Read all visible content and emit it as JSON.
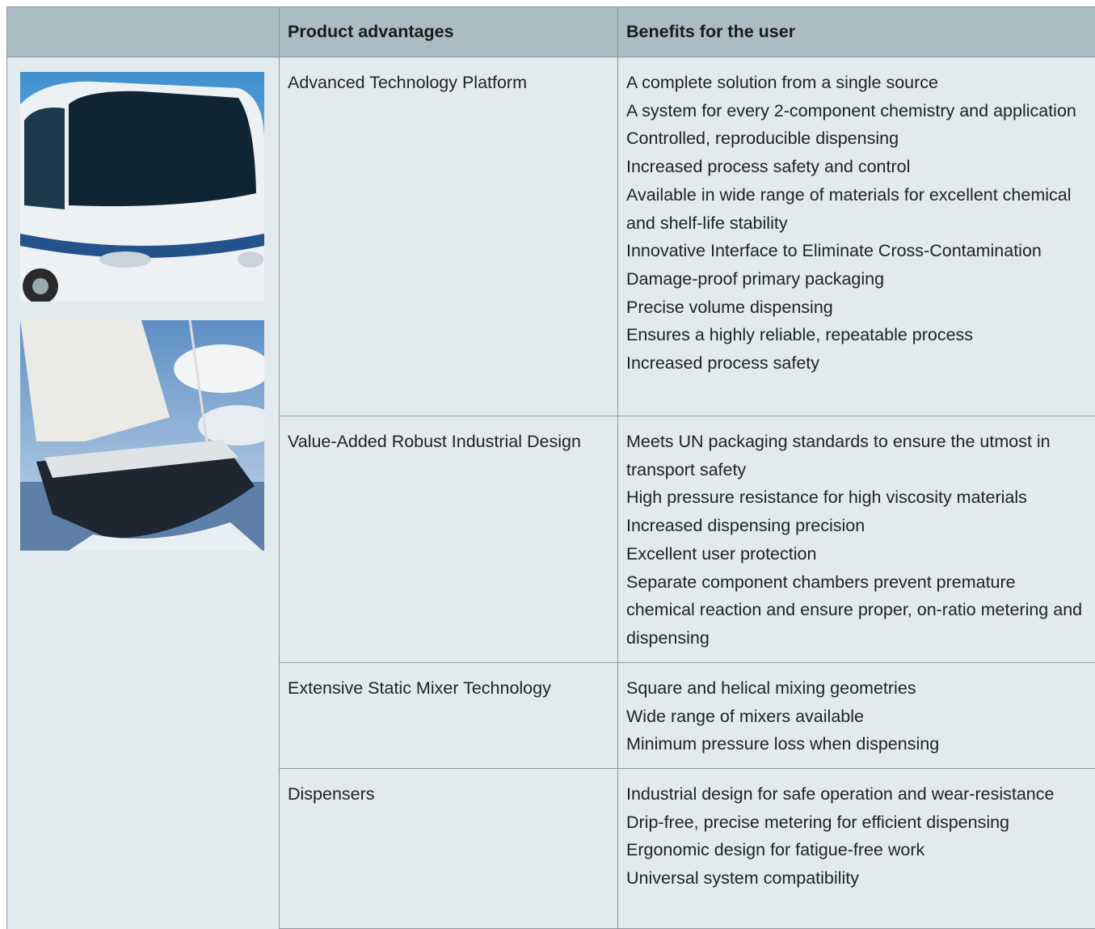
{
  "table": {
    "headers": [
      "Product advantages",
      "Benefits for the user"
    ],
    "rows": [
      {
        "advantage": "Advanced Technology Platform",
        "benefits": [
          "A complete solution from a single source",
          "A system for every 2-component chemistry and application",
          "Controlled, reproducible dispensing",
          "Increased process safety and control",
          "Available in wide range of materials for excellent chemical and shelf-life stability",
          "Innovative Interface to Eliminate Cross-Contamination",
          "Damage-proof primary packaging",
          "Precise volume dispensing",
          "Ensures a highly reliable, repeatable process",
          "Increased process safety"
        ]
      },
      {
        "advantage": "Value-Added Robust Industrial Design",
        "benefits": [
          "Meets UN packaging standards to ensure the utmost in transport safety",
          "High pressure resistance for high viscosity materials",
          "Increased dispensing precision",
          "Excellent user protection",
          "Separate component chambers prevent premature chemical reaction and ensure proper, on-ratio metering and dispensing"
        ]
      },
      {
        "advantage": "Extensive Static Mixer Technology",
        "benefits": [
          "Square and helical mixing geometries",
          "Wide range of mixers available",
          "Minimum pressure loss when dispensing"
        ]
      },
      {
        "advantage": "Dispensers",
        "benefits": [
          "Industrial design for safe operation and wear-resistance",
          "Drip-free, precise metering for efficient dispensing",
          "Ergonomic design for fatigue-free work",
          "Universal system compatibility"
        ]
      }
    ]
  }
}
